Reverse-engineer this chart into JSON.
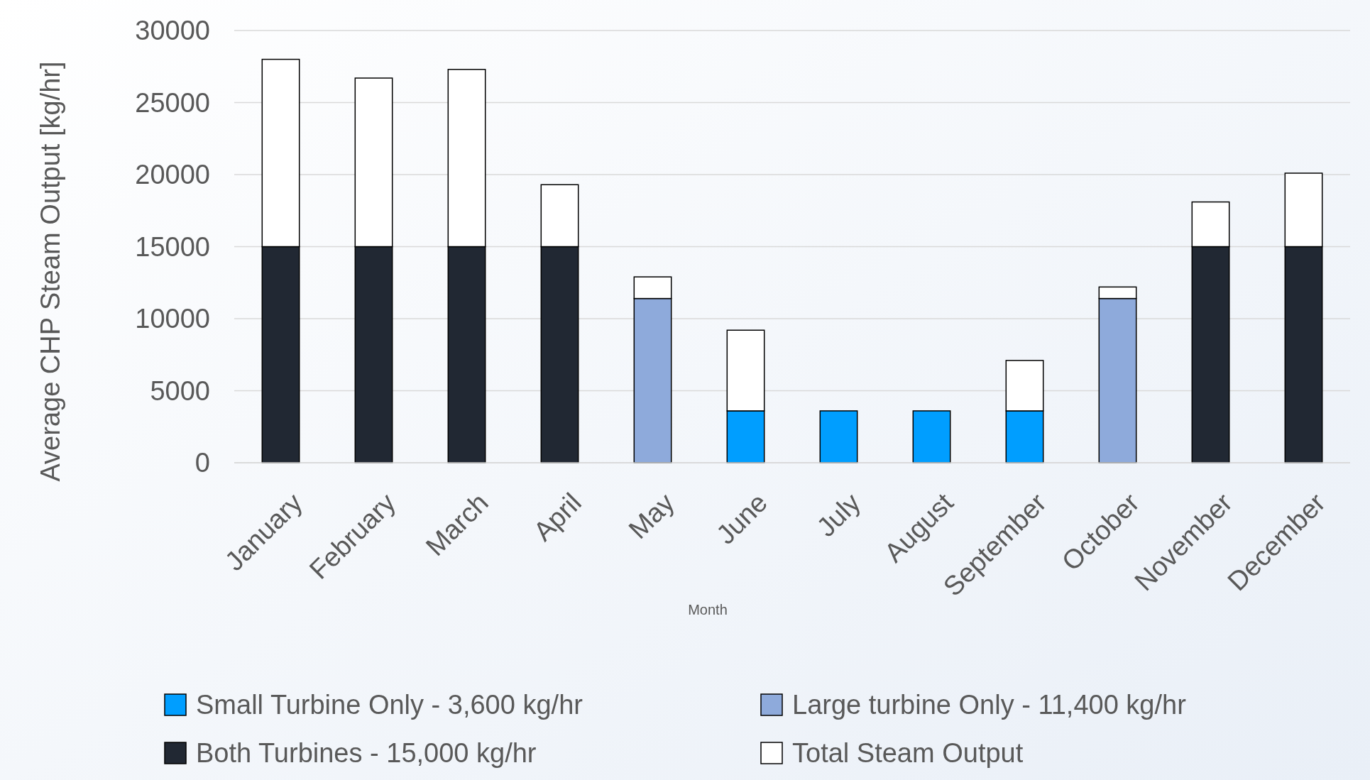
{
  "chart_data": {
    "type": "bar",
    "stacked": true,
    "xlabel": "Month",
    "ylabel": "Average CHP Steam Output [kg/hr]",
    "categories": [
      "January",
      "February",
      "March",
      "April",
      "May",
      "June",
      "July",
      "August",
      "September",
      "October",
      "November",
      "December"
    ],
    "series": [
      {
        "name": "Small Turbine Only - 3,600 kg/hr",
        "color": "#009eff",
        "values": [
          null,
          null,
          null,
          null,
          null,
          3600,
          3600,
          3600,
          3600,
          null,
          null,
          null
        ]
      },
      {
        "name": "Large turbine Only - 11,400 kg/hr",
        "color": "#8eaadb",
        "values": [
          null,
          null,
          null,
          null,
          11400,
          null,
          null,
          null,
          null,
          11400,
          null,
          null
        ]
      },
      {
        "name": "Both Turbines - 15,000 kg/hr",
        "color": "#212833",
        "values": [
          15000,
          15000,
          15000,
          15000,
          null,
          null,
          null,
          null,
          null,
          null,
          15000,
          15000
        ]
      },
      {
        "name": "Total Steam Output",
        "color": "#ffffff",
        "values": [
          13000,
          11700,
          12300,
          4300,
          1500,
          5600,
          null,
          null,
          3500,
          800,
          3100,
          5100
        ]
      }
    ],
    "ylim": [
      0,
      30000
    ],
    "yticks": [
      0,
      5000,
      10000,
      15000,
      20000,
      25000,
      30000
    ],
    "grid": "y",
    "legend": "bottom"
  }
}
